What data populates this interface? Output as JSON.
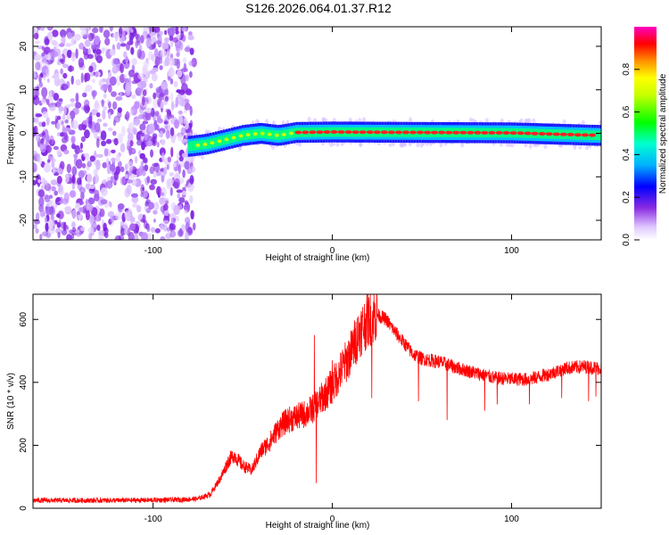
{
  "title": "S126.2026.064.01.37.R12",
  "chart_data": [
    {
      "type": "heatmap",
      "xlabel": "Height of straight line (km)",
      "ylabel": "Frequency (Hz)",
      "xlim": [
        -167,
        150
      ],
      "ylim": [
        -24.5,
        24.5
      ],
      "xticks": [
        -100,
        0,
        100
      ],
      "yticks": [
        -20,
        -10,
        0,
        10,
        20
      ],
      "noise_region": [
        -167,
        -80
      ],
      "ridge": [
        {
          "x": -80,
          "y": -3.0
        },
        {
          "x": -70,
          "y": -2.5
        },
        {
          "x": -60,
          "y": -1.5
        },
        {
          "x": -50,
          "y": -0.5
        },
        {
          "x": -40,
          "y": 0.0
        },
        {
          "x": -30,
          "y": -0.5
        },
        {
          "x": -20,
          "y": 0.2
        },
        {
          "x": 0,
          "y": 0.3
        },
        {
          "x": 50,
          "y": 0.2
        },
        {
          "x": 100,
          "y": 0.1
        },
        {
          "x": 150,
          "y": -0.5
        }
      ],
      "colorbar": {
        "label": "Normalized spectral amplitude",
        "ticks": [
          0.0,
          0.2,
          0.4,
          0.6,
          0.8
        ],
        "range": [
          0.0,
          1.0
        ]
      }
    },
    {
      "type": "line",
      "xlabel": "Height of straight line (km)",
      "ylabel": "SNR (10 * v/v)",
      "xlim": [
        -167,
        150
      ],
      "ylim": [
        0,
        680
      ],
      "xticks": [
        -100,
        0,
        100
      ],
      "yticks": [
        0,
        200,
        400,
        600
      ],
      "series": [
        {
          "name": "SNR",
          "color": "#ff0000",
          "points": [
            [
              -167,
              25
            ],
            [
              -140,
              25
            ],
            [
              -120,
              25
            ],
            [
              -100,
              26
            ],
            [
              -85,
              27
            ],
            [
              -75,
              30
            ],
            [
              -68,
              45
            ],
            [
              -62,
              100
            ],
            [
              -58,
              150
            ],
            [
              -55,
              170
            ],
            [
              -50,
              135
            ],
            [
              -45,
              120
            ],
            [
              -40,
              180
            ],
            [
              -35,
              210
            ],
            [
              -30,
              255
            ],
            [
              -25,
              280
            ],
            [
              -20,
              290
            ],
            [
              -15,
              300
            ],
            [
              -10,
              320
            ],
            [
              -5,
              355
            ],
            [
              0,
              390
            ],
            [
              5,
              440
            ],
            [
              10,
              490
            ],
            [
              15,
              560
            ],
            [
              20,
              600
            ],
            [
              25,
              615
            ],
            [
              30,
              600
            ],
            [
              35,
              560
            ],
            [
              40,
              525
            ],
            [
              45,
              490
            ],
            [
              50,
              475
            ],
            [
              60,
              465
            ],
            [
              70,
              445
            ],
            [
              80,
              430
            ],
            [
              90,
              415
            ],
            [
              100,
              410
            ],
            [
              110,
              410
            ],
            [
              120,
              425
            ],
            [
              130,
              445
            ],
            [
              140,
              450
            ],
            [
              150,
              445
            ]
          ],
          "spikes": [
            {
              "x": -10,
              "y": 550
            },
            {
              "x": -9,
              "y": 80
            },
            {
              "x": 0,
              "y": 470
            },
            {
              "x": 22,
              "y": 350
            },
            {
              "x": 48,
              "y": 340
            },
            {
              "x": 64,
              "y": 280
            },
            {
              "x": 85,
              "y": 310
            },
            {
              "x": 92,
              "y": 330
            },
            {
              "x": 110,
              "y": 330
            },
            {
              "x": 128,
              "y": 350
            },
            {
              "x": 143,
              "y": 340
            },
            {
              "x": 147,
              "y": 355
            }
          ]
        }
      ]
    }
  ]
}
